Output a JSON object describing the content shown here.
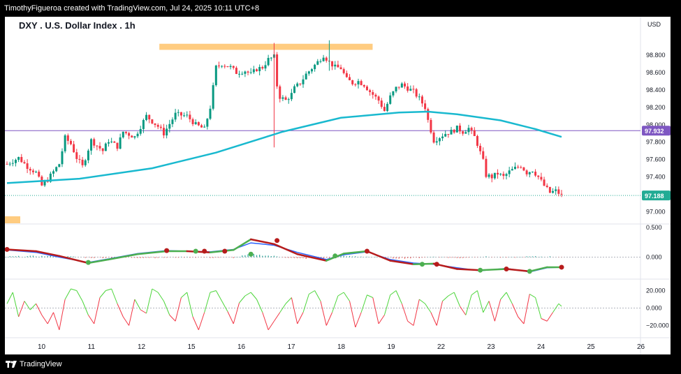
{
  "header": {
    "attribution": "TimothyFigueroa created with TradingView.com, Jul 24, 2025 10:11 UTC+8"
  },
  "footer": {
    "brand": "TradingView",
    "logo_icon": "tradingview-logo-icon"
  },
  "colors": {
    "up": "#089981",
    "down": "#f23645",
    "ma": "#19b9cf",
    "hline": "#7e57c2",
    "zone": "#ffcc80",
    "last_price": "#22ab94",
    "macd_fast": "#2962ff",
    "signal_up": "#4caf50",
    "signal_down": "#b71c1c",
    "osc_up": "#4cd53a",
    "osc_down": "#f23645"
  },
  "chart_data": [
    {
      "type": "candlestick",
      "title": "DXY . U.S. Dollar Index . 1h",
      "currency": "USD",
      "ylim": [
        96.9,
        99.0
      ],
      "y_ticks": [
        "98.800",
        "98.600",
        "98.400",
        "98.200",
        "98.000",
        "97.800",
        "97.600",
        "97.400",
        "97.200",
        "97.000"
      ],
      "x_ticks": [
        "10",
        "11",
        "12",
        "15",
        "16",
        "17",
        "18",
        "19",
        "22",
        "23",
        "24",
        "25",
        "26"
      ],
      "horizontal_line": {
        "value": 97.932,
        "label": "97.932"
      },
      "last_price": {
        "value": 97.188,
        "label": "97.188"
      },
      "resistance_zone": {
        "from": 98.86,
        "to": 98.93,
        "x_from": "16",
        "x_to": "19"
      },
      "path": [
        [
          0,
          97.55
        ],
        [
          4,
          97.62
        ],
        [
          7,
          97.52
        ],
        [
          10,
          97.45
        ],
        [
          12,
          97.3
        ],
        [
          14,
          97.37
        ],
        [
          18,
          97.55
        ],
        [
          20,
          97.85
        ],
        [
          22,
          97.78
        ],
        [
          24,
          97.62
        ],
        [
          26,
          97.52
        ],
        [
          29,
          97.82
        ],
        [
          33,
          97.7
        ],
        [
          35,
          97.82
        ],
        [
          38,
          97.75
        ],
        [
          40,
          97.92
        ],
        [
          44,
          97.86
        ],
        [
          48,
          98.1
        ],
        [
          52,
          97.98
        ],
        [
          54,
          97.9
        ],
        [
          58,
          98.12
        ],
        [
          62,
          98.1
        ],
        [
          65,
          98.0
        ],
        [
          68,
          97.95
        ],
        [
          70,
          98.2
        ],
        [
          72,
          98.66
        ],
        [
          74,
          98.7
        ],
        [
          77,
          98.66
        ],
        [
          79,
          98.6
        ],
        [
          82,
          98.62
        ],
        [
          84,
          98.58
        ],
        [
          86,
          98.64
        ],
        [
          88,
          98.66
        ],
        [
          90,
          98.75
        ],
        [
          92,
          98.78
        ],
        [
          93,
          98.45
        ],
        [
          94,
          98.32
        ],
        [
          96,
          98.28
        ],
        [
          98,
          98.35
        ],
        [
          99,
          98.42
        ],
        [
          101,
          98.48
        ],
        [
          103,
          98.58
        ],
        [
          105,
          98.65
        ],
        [
          107,
          98.72
        ],
        [
          109,
          98.8
        ],
        [
          111,
          98.72
        ],
        [
          113,
          98.66
        ],
        [
          115,
          98.65
        ],
        [
          117,
          98.52
        ],
        [
          119,
          98.48
        ],
        [
          121,
          98.5
        ],
        [
          123,
          98.46
        ],
        [
          125,
          98.38
        ],
        [
          128,
          98.28
        ],
        [
          130,
          98.16
        ],
        [
          132,
          98.32
        ],
        [
          134,
          98.42
        ],
        [
          136,
          98.46
        ],
        [
          138,
          98.42
        ],
        [
          140,
          98.38
        ],
        [
          142,
          98.3
        ],
        [
          144,
          98.2
        ],
        [
          145,
          98.05
        ],
        [
          147,
          97.82
        ],
        [
          149,
          97.86
        ],
        [
          151,
          97.9
        ],
        [
          153,
          97.92
        ],
        [
          155,
          97.96
        ],
        [
          157,
          97.92
        ],
        [
          159,
          97.96
        ],
        [
          161,
          97.86
        ],
        [
          162,
          97.78
        ],
        [
          164,
          97.58
        ],
        [
          165,
          97.42
        ],
        [
          167,
          97.4
        ],
        [
          169,
          97.44
        ],
        [
          171,
          97.4
        ],
        [
          173,
          97.46
        ],
        [
          175,
          97.5
        ],
        [
          177,
          97.53
        ],
        [
          179,
          97.45
        ],
        [
          181,
          97.48
        ],
        [
          183,
          97.4
        ],
        [
          185,
          97.3
        ],
        [
          187,
          97.22
        ],
        [
          189,
          97.24
        ],
        [
          191,
          97.19
        ]
      ],
      "candle_count": 192,
      "moving_average": [
        [
          0,
          97.33
        ],
        [
          25,
          97.38
        ],
        [
          50,
          97.5
        ],
        [
          72,
          97.68
        ],
        [
          95,
          97.92
        ],
        [
          115,
          98.08
        ],
        [
          135,
          98.14
        ],
        [
          145,
          98.15
        ],
        [
          155,
          98.12
        ],
        [
          170,
          98.05
        ],
        [
          182,
          97.95
        ],
        [
          191,
          97.86
        ]
      ]
    },
    {
      "type": "line",
      "name": "momentum",
      "ylim": [
        -0.3,
        0.5
      ],
      "y_ticks": [
        "0.500",
        "0.000"
      ],
      "fast": [
        [
          0,
          0.12
        ],
        [
          10,
          0.08
        ],
        [
          18,
          0.0
        ],
        [
          28,
          -0.09
        ],
        [
          35,
          -0.03
        ],
        [
          45,
          0.06
        ],
        [
          55,
          0.11
        ],
        [
          62,
          0.1
        ],
        [
          70,
          0.09
        ],
        [
          78,
          0.13
        ],
        [
          84,
          0.24
        ],
        [
          92,
          0.2
        ],
        [
          100,
          0.08
        ],
        [
          110,
          -0.04
        ],
        [
          116,
          0.04
        ],
        [
          124,
          0.09
        ],
        [
          132,
          -0.04
        ],
        [
          140,
          -0.1
        ],
        [
          147,
          -0.12
        ],
        [
          155,
          -0.18
        ],
        [
          163,
          -0.23
        ],
        [
          172,
          -0.19
        ],
        [
          180,
          -0.25
        ],
        [
          186,
          -0.18
        ],
        [
          191,
          -0.17
        ]
      ],
      "signal": [
        [
          0,
          0.13
        ],
        [
          10,
          0.1
        ],
        [
          18,
          0.02
        ],
        [
          28,
          -0.1
        ],
        [
          35,
          -0.04
        ],
        [
          45,
          0.05
        ],
        [
          55,
          0.1
        ],
        [
          62,
          0.1
        ],
        [
          70,
          0.08
        ],
        [
          78,
          0.12
        ],
        [
          84,
          0.3
        ],
        [
          92,
          0.22
        ],
        [
          100,
          0.05
        ],
        [
          110,
          -0.06
        ],
        [
          116,
          0.06
        ],
        [
          124,
          0.1
        ],
        [
          132,
          -0.06
        ],
        [
          140,
          -0.12
        ],
        [
          147,
          -0.11
        ],
        [
          155,
          -0.2
        ],
        [
          163,
          -0.22
        ],
        [
          172,
          -0.2
        ],
        [
          180,
          -0.24
        ],
        [
          186,
          -0.17
        ],
        [
          191,
          -0.17
        ]
      ],
      "cross_markers": [
        [
          0,
          0.13,
          "down"
        ],
        [
          28,
          -0.09,
          "up"
        ],
        [
          55,
          0.11,
          "down"
        ],
        [
          65,
          0.1,
          "up"
        ],
        [
          68,
          0.1,
          "down"
        ],
        [
          75,
          0.1,
          "down"
        ],
        [
          84,
          0.05,
          "up"
        ],
        [
          93,
          0.28,
          "down"
        ],
        [
          113,
          0.02,
          "up"
        ],
        [
          124,
          0.1,
          "down"
        ],
        [
          143,
          -0.12,
          "up"
        ],
        [
          148,
          -0.12,
          "down"
        ],
        [
          163,
          -0.22,
          "up"
        ],
        [
          172,
          -0.2,
          "down"
        ],
        [
          180,
          -0.24,
          "up"
        ],
        [
          191,
          -0.17,
          "down"
        ]
      ]
    },
    {
      "type": "line",
      "name": "oscillator",
      "ylim": [
        -30,
        30
      ],
      "y_ticks": [
        "20.000",
        "0.000",
        "−20.000"
      ],
      "values": [
        [
          0,
          5
        ],
        [
          2,
          18
        ],
        [
          4,
          -10
        ],
        [
          6,
          8
        ],
        [
          8,
          -2
        ],
        [
          10,
          5
        ],
        [
          12,
          -8
        ],
        [
          14,
          -18
        ],
        [
          16,
          -5
        ],
        [
          18,
          -25
        ],
        [
          20,
          10
        ],
        [
          22,
          22
        ],
        [
          24,
          20
        ],
        [
          26,
          8
        ],
        [
          28,
          -8
        ],
        [
          30,
          -18
        ],
        [
          32,
          12
        ],
        [
          34,
          20
        ],
        [
          36,
          22
        ],
        [
          38,
          5
        ],
        [
          40,
          -10
        ],
        [
          42,
          -20
        ],
        [
          44,
          10
        ],
        [
          46,
          -2
        ],
        [
          48,
          -6
        ],
        [
          50,
          22
        ],
        [
          52,
          18
        ],
        [
          54,
          8
        ],
        [
          56,
          -8
        ],
        [
          58,
          -15
        ],
        [
          60,
          12
        ],
        [
          62,
          18
        ],
        [
          64,
          -10
        ],
        [
          66,
          -25
        ],
        [
          68,
          -5
        ],
        [
          70,
          18
        ],
        [
          72,
          20
        ],
        [
          74,
          8
        ],
        [
          76,
          -4
        ],
        [
          78,
          -18
        ],
        [
          80,
          6
        ],
        [
          82,
          14
        ],
        [
          84,
          18
        ],
        [
          86,
          10
        ],
        [
          88,
          -5
        ],
        [
          90,
          -25
        ],
        [
          92,
          -15
        ],
        [
          94,
          -5
        ],
        [
          96,
          5
        ],
        [
          98,
          12
        ],
        [
          100,
          -18
        ],
        [
          102,
          -5
        ],
        [
          104,
          16
        ],
        [
          106,
          20
        ],
        [
          108,
          8
        ],
        [
          110,
          -20
        ],
        [
          112,
          -5
        ],
        [
          114,
          14
        ],
        [
          116,
          18
        ],
        [
          118,
          8
        ],
        [
          120,
          -22
        ],
        [
          122,
          -5
        ],
        [
          124,
          15
        ],
        [
          126,
          12
        ],
        [
          128,
          -18
        ],
        [
          130,
          -8
        ],
        [
          132,
          15
        ],
        [
          134,
          20
        ],
        [
          136,
          5
        ],
        [
          138,
          -15
        ],
        [
          140,
          -20
        ],
        [
          142,
          10
        ],
        [
          144,
          5
        ],
        [
          146,
          -5
        ],
        [
          148,
          -20
        ],
        [
          150,
          8
        ],
        [
          152,
          14
        ],
        [
          154,
          18
        ],
        [
          156,
          2
        ],
        [
          158,
          -8
        ],
        [
          160,
          15
        ],
        [
          162,
          20
        ],
        [
          164,
          -5
        ],
        [
          166,
          8
        ],
        [
          168,
          -15
        ],
        [
          170,
          10
        ],
        [
          172,
          18
        ],
        [
          174,
          5
        ],
        [
          176,
          -10
        ],
        [
          178,
          -18
        ],
        [
          180,
          16
        ],
        [
          182,
          12
        ],
        [
          184,
          -12
        ],
        [
          186,
          -15
        ],
        [
          188,
          -5
        ],
        [
          190,
          5
        ],
        [
          191,
          2
        ]
      ]
    }
  ]
}
